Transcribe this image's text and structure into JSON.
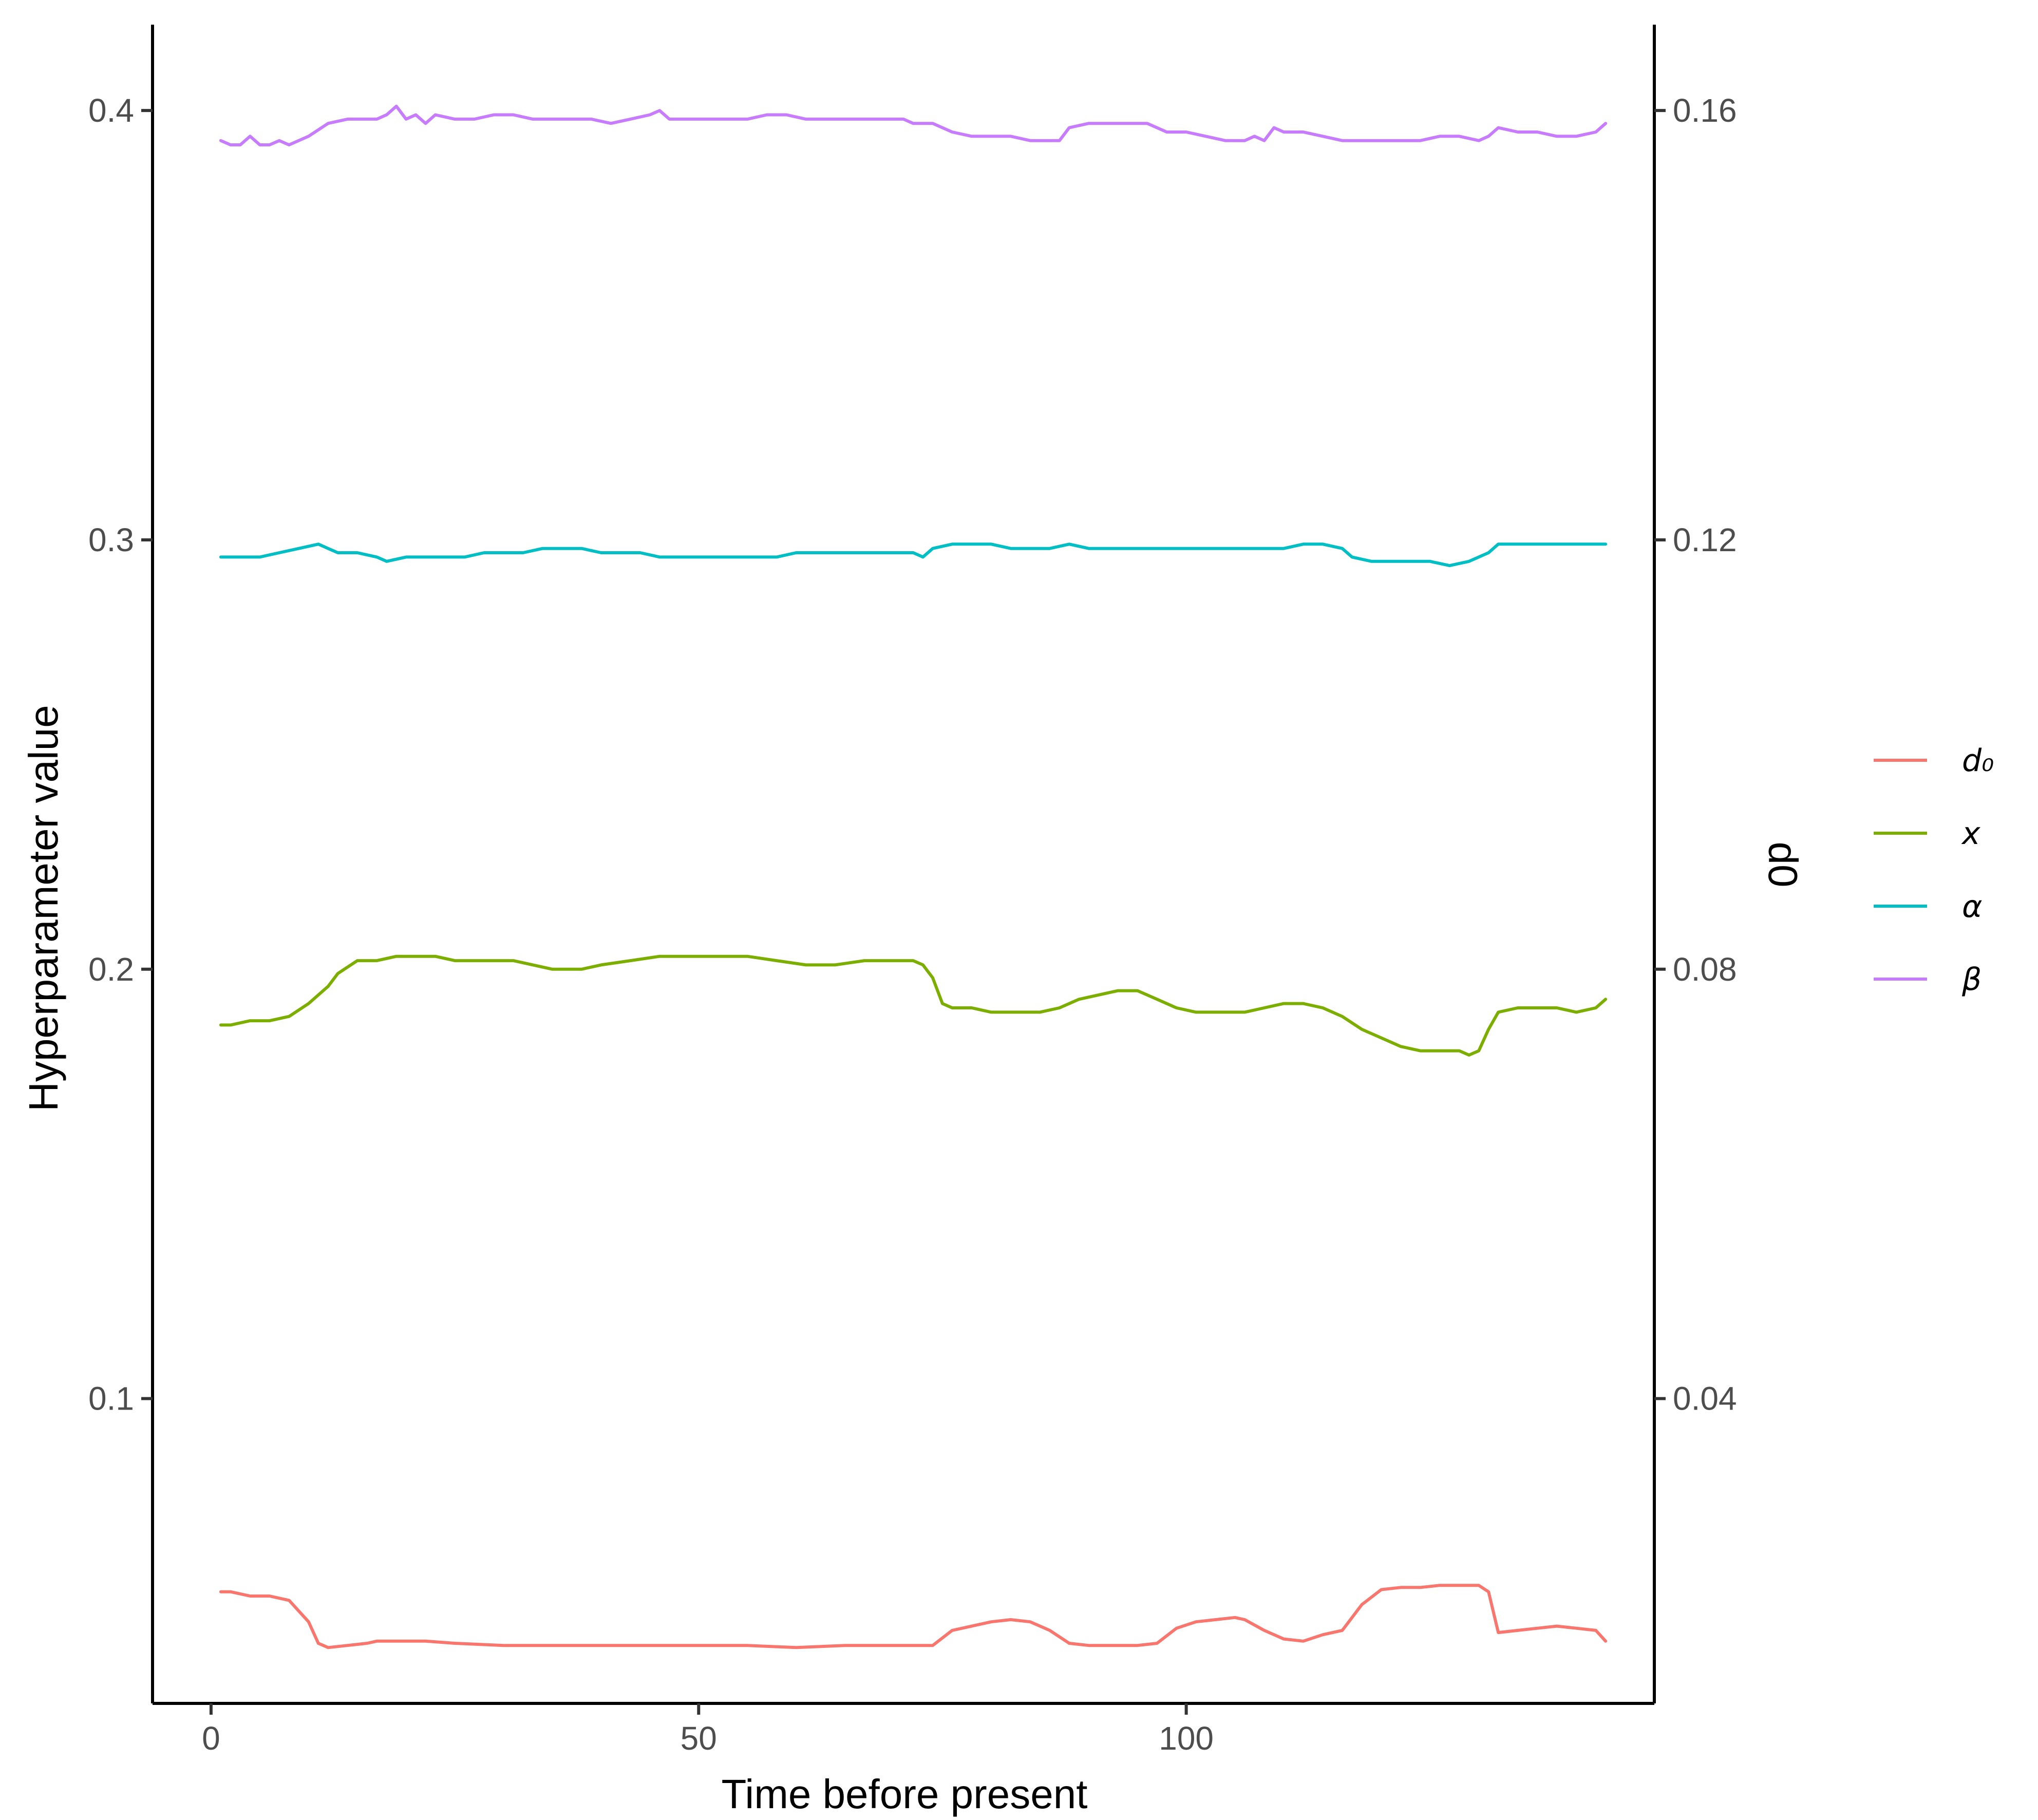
{
  "chart_data": {
    "type": "line",
    "xlabel": "Time before present",
    "ylabel": "Hyperparameter value",
    "y2label": "d0",
    "xlim": [
      -6,
      148
    ],
    "ylim": [
      0.029,
      0.42
    ],
    "y2lim": [
      0.0116,
      0.168
    ],
    "xticks": [
      0,
      50,
      100
    ],
    "yticks": [
      0.1,
      0.2,
      0.3,
      0.4
    ],
    "y2ticks": [
      0.04,
      0.08,
      0.12,
      0.16
    ],
    "xtick_labels": [
      "0",
      "50",
      "100"
    ],
    "ytick_labels": [
      "0.1",
      "0.2",
      "0.3",
      "0.4"
    ],
    "y2tick_labels": [
      "0.04",
      "0.08",
      "0.12",
      "0.16"
    ],
    "grid": false,
    "legend": "right",
    "series": [
      {
        "name": "d₀",
        "color": "#F8766D",
        "axis": "left",
        "points": [
          [
            1,
            0.055
          ],
          [
            2,
            0.055
          ],
          [
            4,
            0.054
          ],
          [
            6,
            0.054
          ],
          [
            8,
            0.053
          ],
          [
            10,
            0.048
          ],
          [
            11,
            0.043
          ],
          [
            12,
            0.042
          ],
          [
            14,
            0.0425
          ],
          [
            16,
            0.043
          ],
          [
            17,
            0.0435
          ],
          [
            20,
            0.0435
          ],
          [
            22,
            0.0435
          ],
          [
            25,
            0.043
          ],
          [
            30,
            0.0425
          ],
          [
            35,
            0.0425
          ],
          [
            40,
            0.0425
          ],
          [
            45,
            0.0425
          ],
          [
            50,
            0.0425
          ],
          [
            55,
            0.0425
          ],
          [
            60,
            0.042
          ],
          [
            65,
            0.0425
          ],
          [
            70,
            0.0425
          ],
          [
            72,
            0.0425
          ],
          [
            74,
            0.0425
          ],
          [
            76,
            0.046
          ],
          [
            78,
            0.047
          ],
          [
            80,
            0.048
          ],
          [
            82,
            0.0485
          ],
          [
            84,
            0.048
          ],
          [
            86,
            0.046
          ],
          [
            88,
            0.043
          ],
          [
            90,
            0.0425
          ],
          [
            95,
            0.0425
          ],
          [
            97,
            0.043
          ],
          [
            99,
            0.0465
          ],
          [
            101,
            0.048
          ],
          [
            103,
            0.0485
          ],
          [
            105,
            0.049
          ],
          [
            106,
            0.0485
          ],
          [
            108,
            0.046
          ],
          [
            110,
            0.044
          ],
          [
            112,
            0.0435
          ],
          [
            114,
            0.045
          ],
          [
            116,
            0.046
          ],
          [
            118,
            0.052
          ],
          [
            120,
            0.0555
          ],
          [
            122,
            0.056
          ],
          [
            124,
            0.056
          ],
          [
            126,
            0.0565
          ],
          [
            128,
            0.0565
          ],
          [
            130,
            0.0565
          ],
          [
            131,
            0.055
          ],
          [
            132,
            0.0455
          ],
          [
            134,
            0.046
          ],
          [
            136,
            0.0465
          ],
          [
            138,
            0.047
          ],
          [
            140,
            0.0465
          ],
          [
            142,
            0.046
          ],
          [
            143,
            0.0435
          ]
        ]
      },
      {
        "name": "x",
        "color": "#7CAE00",
        "axis": "left",
        "points": [
          [
            1,
            0.187
          ],
          [
            2,
            0.187
          ],
          [
            4,
            0.188
          ],
          [
            6,
            0.188
          ],
          [
            8,
            0.189
          ],
          [
            10,
            0.192
          ],
          [
            12,
            0.196
          ],
          [
            13,
            0.199
          ],
          [
            15,
            0.202
          ],
          [
            17,
            0.202
          ],
          [
            19,
            0.203
          ],
          [
            21,
            0.203
          ],
          [
            23,
            0.203
          ],
          [
            25,
            0.202
          ],
          [
            28,
            0.202
          ],
          [
            31,
            0.202
          ],
          [
            33,
            0.201
          ],
          [
            35,
            0.2
          ],
          [
            38,
            0.2
          ],
          [
            40,
            0.201
          ],
          [
            43,
            0.202
          ],
          [
            46,
            0.203
          ],
          [
            49,
            0.203
          ],
          [
            52,
            0.203
          ],
          [
            55,
            0.203
          ],
          [
            58,
            0.202
          ],
          [
            61,
            0.201
          ],
          [
            64,
            0.201
          ],
          [
            67,
            0.202
          ],
          [
            70,
            0.202
          ],
          [
            72,
            0.202
          ],
          [
            73,
            0.201
          ],
          [
            74,
            0.198
          ],
          [
            75,
            0.192
          ],
          [
            76,
            0.191
          ],
          [
            78,
            0.191
          ],
          [
            80,
            0.19
          ],
          [
            82,
            0.19
          ],
          [
            85,
            0.19
          ],
          [
            87,
            0.191
          ],
          [
            89,
            0.193
          ],
          [
            91,
            0.194
          ],
          [
            93,
            0.195
          ],
          [
            95,
            0.195
          ],
          [
            97,
            0.193
          ],
          [
            99,
            0.191
          ],
          [
            101,
            0.19
          ],
          [
            104,
            0.19
          ],
          [
            106,
            0.19
          ],
          [
            108,
            0.191
          ],
          [
            110,
            0.192
          ],
          [
            112,
            0.192
          ],
          [
            114,
            0.191
          ],
          [
            116,
            0.189
          ],
          [
            118,
            0.186
          ],
          [
            120,
            0.184
          ],
          [
            122,
            0.182
          ],
          [
            124,
            0.181
          ],
          [
            126,
            0.181
          ],
          [
            128,
            0.181
          ],
          [
            129,
            0.18
          ],
          [
            130,
            0.181
          ],
          [
            131,
            0.186
          ],
          [
            132,
            0.19
          ],
          [
            134,
            0.191
          ],
          [
            136,
            0.191
          ],
          [
            138,
            0.191
          ],
          [
            140,
            0.19
          ],
          [
            142,
            0.191
          ],
          [
            143,
            0.193
          ]
        ]
      },
      {
        "name": "α",
        "color": "#00BFC4",
        "axis": "left",
        "points": [
          [
            1,
            0.296
          ],
          [
            3,
            0.296
          ],
          [
            5,
            0.296
          ],
          [
            7,
            0.297
          ],
          [
            9,
            0.298
          ],
          [
            11,
            0.299
          ],
          [
            12,
            0.298
          ],
          [
            13,
            0.297
          ],
          [
            15,
            0.297
          ],
          [
            17,
            0.296
          ],
          [
            18,
            0.295
          ],
          [
            20,
            0.296
          ],
          [
            22,
            0.296
          ],
          [
            24,
            0.296
          ],
          [
            26,
            0.296
          ],
          [
            28,
            0.297
          ],
          [
            30,
            0.297
          ],
          [
            32,
            0.297
          ],
          [
            34,
            0.298
          ],
          [
            36,
            0.298
          ],
          [
            38,
            0.298
          ],
          [
            40,
            0.297
          ],
          [
            42,
            0.297
          ],
          [
            44,
            0.297
          ],
          [
            46,
            0.296
          ],
          [
            48,
            0.296
          ],
          [
            50,
            0.296
          ],
          [
            52,
            0.296
          ],
          [
            54,
            0.296
          ],
          [
            56,
            0.296
          ],
          [
            58,
            0.296
          ],
          [
            60,
            0.297
          ],
          [
            62,
            0.297
          ],
          [
            64,
            0.297
          ],
          [
            66,
            0.297
          ],
          [
            68,
            0.297
          ],
          [
            70,
            0.297
          ],
          [
            72,
            0.297
          ],
          [
            73,
            0.296
          ],
          [
            74,
            0.298
          ],
          [
            76,
            0.299
          ],
          [
            78,
            0.299
          ],
          [
            80,
            0.299
          ],
          [
            82,
            0.298
          ],
          [
            84,
            0.298
          ],
          [
            86,
            0.298
          ],
          [
            88,
            0.299
          ],
          [
            90,
            0.298
          ],
          [
            92,
            0.298
          ],
          [
            94,
            0.298
          ],
          [
            96,
            0.298
          ],
          [
            98,
            0.298
          ],
          [
            100,
            0.298
          ],
          [
            102,
            0.298
          ],
          [
            104,
            0.298
          ],
          [
            106,
            0.298
          ],
          [
            108,
            0.298
          ],
          [
            110,
            0.298
          ],
          [
            112,
            0.299
          ],
          [
            114,
            0.299
          ],
          [
            116,
            0.298
          ],
          [
            117,
            0.296
          ],
          [
            119,
            0.295
          ],
          [
            121,
            0.295
          ],
          [
            123,
            0.295
          ],
          [
            125,
            0.295
          ],
          [
            127,
            0.294
          ],
          [
            129,
            0.295
          ],
          [
            131,
            0.297
          ],
          [
            132,
            0.299
          ],
          [
            134,
            0.299
          ],
          [
            136,
            0.299
          ],
          [
            138,
            0.299
          ],
          [
            140,
            0.299
          ],
          [
            142,
            0.299
          ],
          [
            143,
            0.299
          ]
        ]
      },
      {
        "name": "β",
        "color": "#C77CFF",
        "axis": "left",
        "points": [
          [
            1,
            0.393
          ],
          [
            2,
            0.392
          ],
          [
            3,
            0.392
          ],
          [
            4,
            0.394
          ],
          [
            5,
            0.392
          ],
          [
            6,
            0.392
          ],
          [
            7,
            0.393
          ],
          [
            8,
            0.392
          ],
          [
            10,
            0.394
          ],
          [
            12,
            0.397
          ],
          [
            14,
            0.398
          ],
          [
            16,
            0.398
          ],
          [
            17,
            0.398
          ],
          [
            18,
            0.399
          ],
          [
            19,
            0.401
          ],
          [
            20,
            0.398
          ],
          [
            21,
            0.399
          ],
          [
            22,
            0.397
          ],
          [
            23,
            0.399
          ],
          [
            25,
            0.398
          ],
          [
            27,
            0.398
          ],
          [
            29,
            0.399
          ],
          [
            31,
            0.399
          ],
          [
            33,
            0.398
          ],
          [
            35,
            0.398
          ],
          [
            37,
            0.398
          ],
          [
            39,
            0.398
          ],
          [
            41,
            0.397
          ],
          [
            43,
            0.398
          ],
          [
            45,
            0.399
          ],
          [
            46,
            0.4
          ],
          [
            47,
            0.398
          ],
          [
            49,
            0.398
          ],
          [
            51,
            0.398
          ],
          [
            53,
            0.398
          ],
          [
            55,
            0.398
          ],
          [
            57,
            0.399
          ],
          [
            59,
            0.399
          ],
          [
            61,
            0.398
          ],
          [
            63,
            0.398
          ],
          [
            65,
            0.398
          ],
          [
            67,
            0.398
          ],
          [
            69,
            0.398
          ],
          [
            71,
            0.398
          ],
          [
            72,
            0.397
          ],
          [
            74,
            0.397
          ],
          [
            76,
            0.395
          ],
          [
            78,
            0.394
          ],
          [
            80,
            0.394
          ],
          [
            82,
            0.394
          ],
          [
            84,
            0.393
          ],
          [
            86,
            0.393
          ],
          [
            87,
            0.393
          ],
          [
            88,
            0.396
          ],
          [
            90,
            0.397
          ],
          [
            92,
            0.397
          ],
          [
            94,
            0.397
          ],
          [
            96,
            0.397
          ],
          [
            98,
            0.395
          ],
          [
            100,
            0.395
          ],
          [
            102,
            0.394
          ],
          [
            104,
            0.393
          ],
          [
            106,
            0.393
          ],
          [
            107,
            0.394
          ],
          [
            108,
            0.393
          ],
          [
            109,
            0.396
          ],
          [
            110,
            0.395
          ],
          [
            112,
            0.395
          ],
          [
            114,
            0.394
          ],
          [
            116,
            0.393
          ],
          [
            118,
            0.393
          ],
          [
            120,
            0.393
          ],
          [
            122,
            0.393
          ],
          [
            124,
            0.393
          ],
          [
            126,
            0.394
          ],
          [
            128,
            0.394
          ],
          [
            130,
            0.393
          ],
          [
            131,
            0.394
          ],
          [
            132,
            0.396
          ],
          [
            134,
            0.395
          ],
          [
            136,
            0.395
          ],
          [
            138,
            0.394
          ],
          [
            140,
            0.394
          ],
          [
            142,
            0.395
          ],
          [
            143,
            0.397
          ]
        ]
      }
    ]
  }
}
